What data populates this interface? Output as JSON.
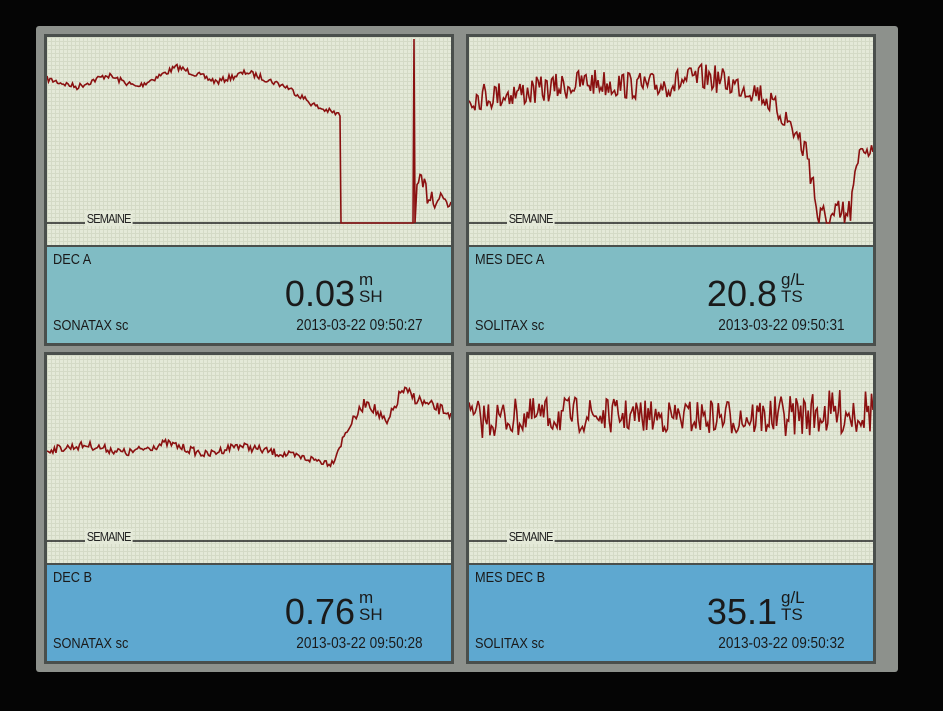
{
  "panels": [
    {
      "axis_label": "SEMAINE",
      "name": "DEC A",
      "value": "0.03",
      "unit_top": "m",
      "unit_bottom": "SH",
      "sensor": "SONATAX sc",
      "timestamp": "2013-03-22 09:50:27"
    },
    {
      "axis_label": "SEMAINE",
      "name": "MES DEC A",
      "value": "20.8",
      "unit_top": "g/L",
      "unit_bottom": "TS",
      "sensor": "SOLITAX sc",
      "timestamp": "2013-03-22 09:50:31"
    },
    {
      "axis_label": "SEMAINE",
      "name": "DEC B",
      "value": "0.76",
      "unit_top": "m",
      "unit_bottom": "SH",
      "sensor": "SONATAX sc",
      "timestamp": "2013-03-22 09:50:28"
    },
    {
      "axis_label": "SEMAINE",
      "name": "MES DEC B",
      "value": "35.1",
      "unit_top": "g/L",
      "unit_bottom": "TS",
      "sensor": "SOLITAX sc",
      "timestamp": "2013-03-22 09:50:32"
    }
  ]
}
